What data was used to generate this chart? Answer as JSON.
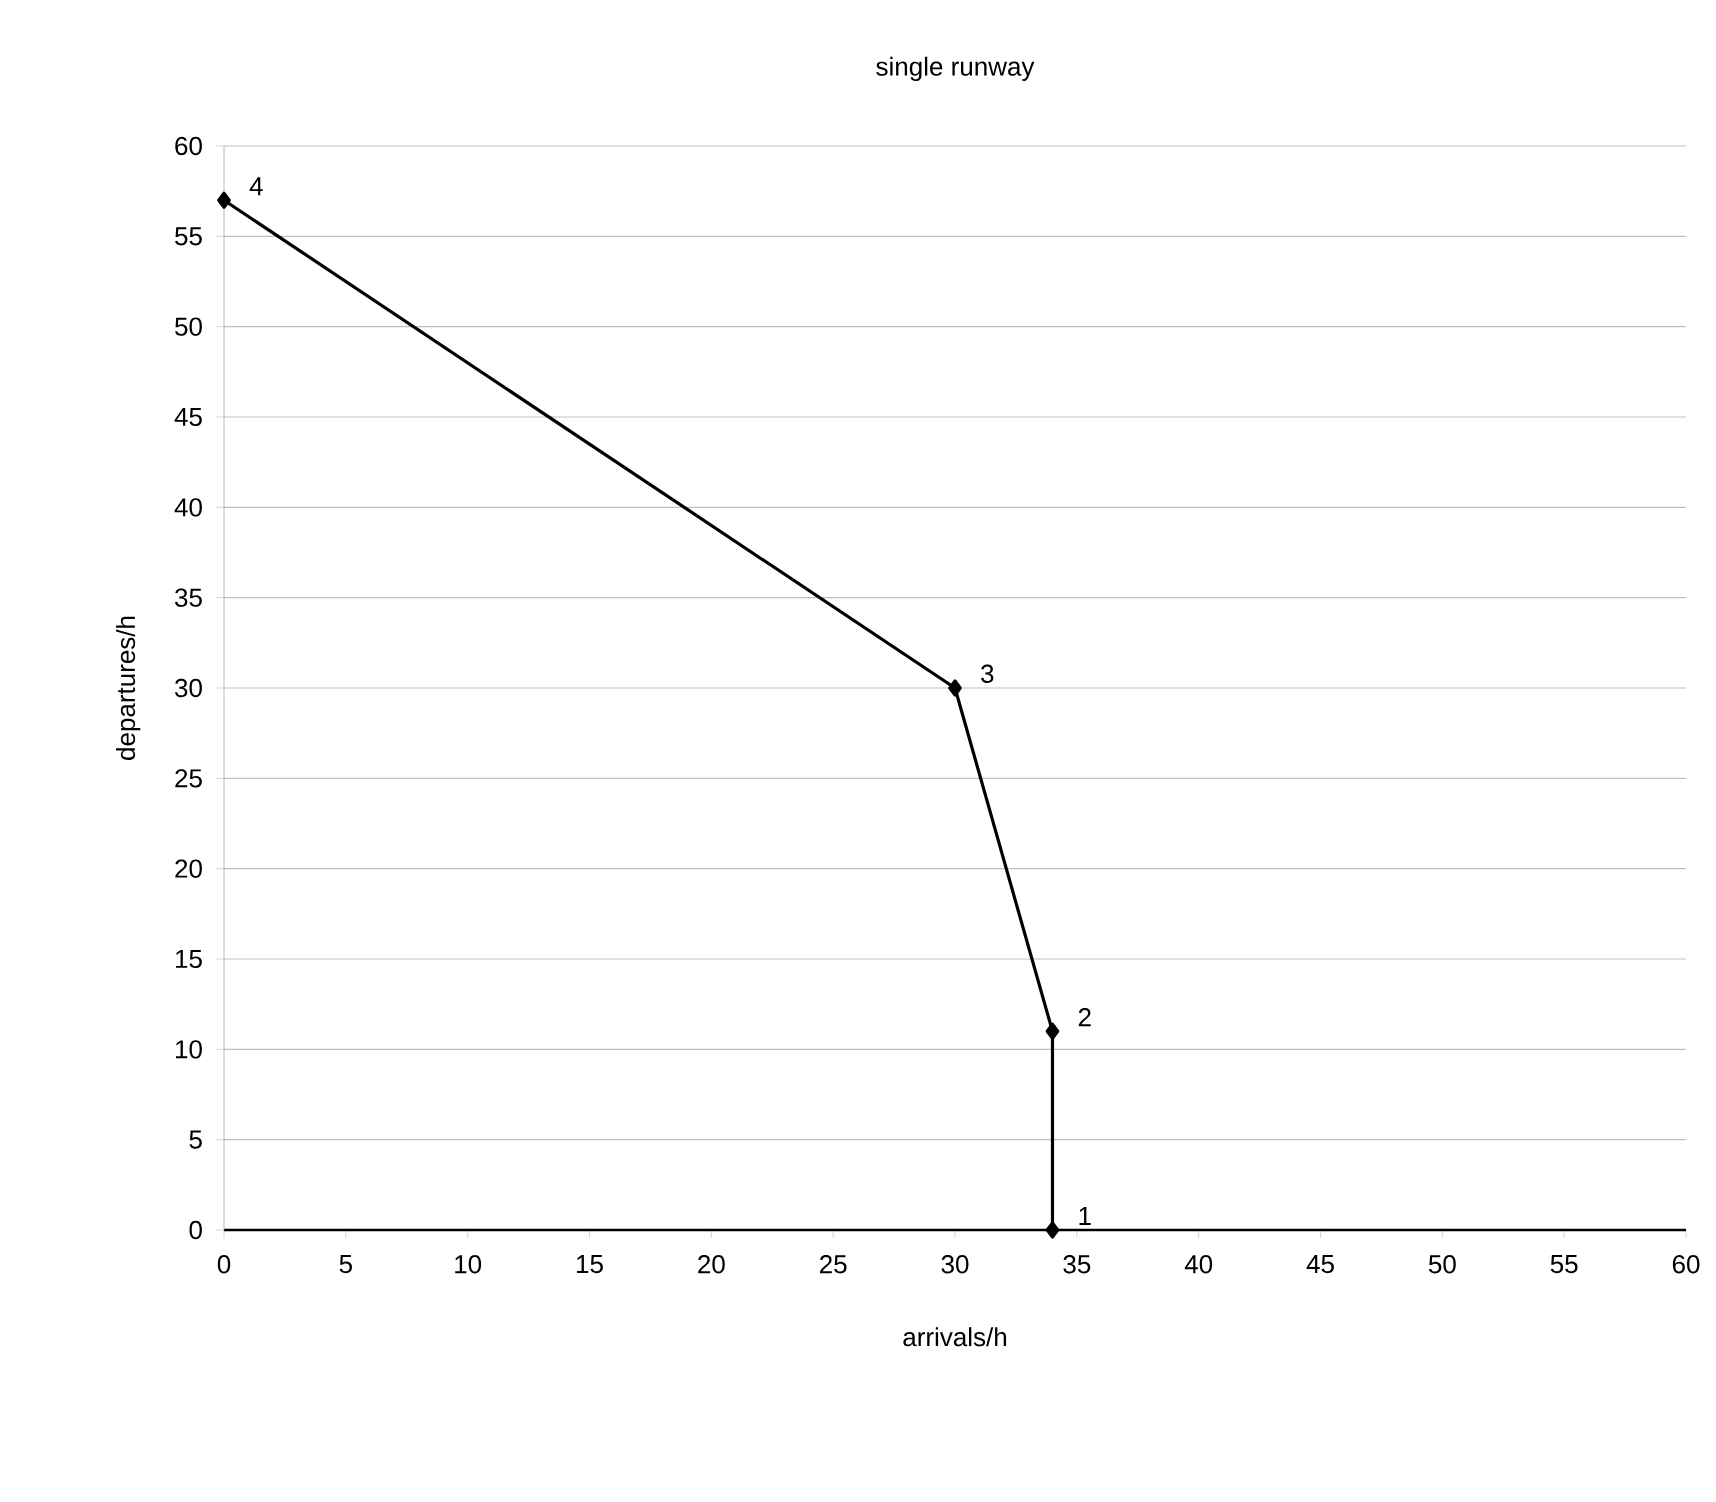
{
  "chart_data": {
    "type": "line",
    "title": "single runway",
    "xlabel": "arrivals/h",
    "ylabel": "departures/h",
    "x": [
      34,
      34,
      30,
      0
    ],
    "values": [
      0,
      11,
      30,
      57
    ],
    "color": "#000000",
    "marker": "diamond",
    "line_style": "solid",
    "grid": "y",
    "xlim": [
      0,
      60
    ],
    "ylim": [
      0,
      60
    ],
    "xticks": [
      0,
      5,
      10,
      15,
      20,
      25,
      30,
      35,
      40,
      45,
      50,
      55,
      60
    ],
    "yticks": [
      0,
      5,
      10,
      15,
      20,
      25,
      30,
      35,
      40,
      45,
      50,
      55,
      60
    ],
    "annotations": [
      {
        "text": "1",
        "x": 34,
        "y": 0
      },
      {
        "text": "2",
        "x": 34,
        "y": 11
      },
      {
        "text": "3",
        "x": 30,
        "y": 30
      },
      {
        "text": "4",
        "x": 0,
        "y": 57
      }
    ]
  }
}
